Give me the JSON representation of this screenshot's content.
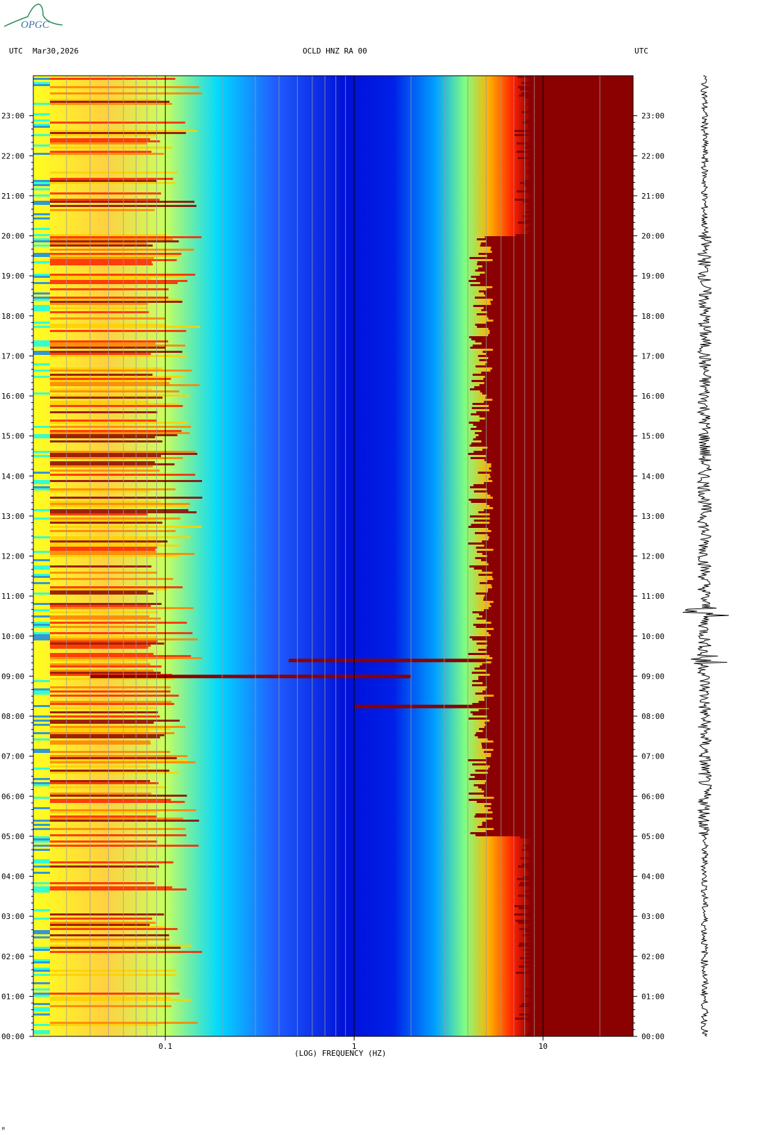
{
  "logo": {
    "text": "OPGC",
    "icon": "opgc-logo-icon"
  },
  "header": {
    "left_tz": "UTC",
    "date": "Mar30,2026",
    "station": "OCLD HNZ RA 00",
    "right_tz": "UTC"
  },
  "chart_data": {
    "type": "heatmap",
    "title": "OCLD HNZ RA 00",
    "xlabel": "(LOG) FREQUENCY (HZ)",
    "x_scale": "log",
    "xlim": [
      0.02,
      30
    ],
    "x_ticks": [
      {
        "value": 0.1,
        "label": "0.1"
      },
      {
        "value": 1,
        "label": "1"
      },
      {
        "value": 10,
        "label": "10"
      }
    ],
    "y_ticks": [
      "00:00",
      "01:00",
      "02:00",
      "03:00",
      "04:00",
      "05:00",
      "06:00",
      "07:00",
      "08:00",
      "09:00",
      "10:00",
      "11:00",
      "12:00",
      "13:00",
      "14:00",
      "15:00",
      "16:00",
      "17:00",
      "18:00",
      "19:00",
      "20:00",
      "21:00",
      "22:00",
      "23:00"
    ],
    "ylim_hours": [
      0,
      24
    ],
    "grid": true,
    "colormap": [
      "#00008b",
      "#0000ff",
      "#0080ff",
      "#00ffff",
      "#80ff80",
      "#ffff00",
      "#ff8000",
      "#ff0000",
      "#8b0000"
    ],
    "events": [
      {
        "hour": 8.25,
        "fmin": 1.0,
        "fmax": 6.0
      },
      {
        "hour": 9.0,
        "fmin": 0.04,
        "fmax": 2.0
      },
      {
        "hour": 9.4,
        "fmin": 0.45,
        "fmax": 5.0
      }
    ],
    "seismogram": "black trace of same day"
  },
  "footer": {
    "mark": "M"
  }
}
